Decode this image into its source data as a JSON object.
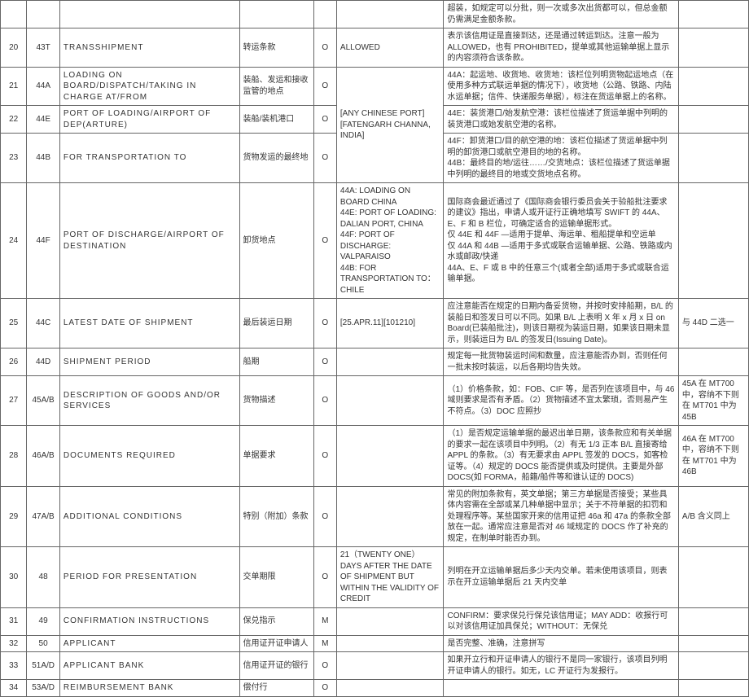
{
  "rows": [
    {
      "idx": "",
      "code": "",
      "field": "",
      "cn": "",
      "req": "",
      "val": "",
      "desc": "超装，如规定可以分批，则一次或多次出货都可以，但总金额仍需满足金额条款。",
      "note": ""
    },
    {
      "idx": "20",
      "code": "43T",
      "field": "TRANSSHIPMENT",
      "cn": "转运条款",
      "req": "O",
      "val": "ALLOWED",
      "desc": "表示该信用证是直接到达，还是通过转运到达。注意一般为 ALLOWED，也有 PROHIBITED，提单或其他运输单据上显示的内容须符合该条款。",
      "note": ""
    },
    {
      "idx": "21",
      "code": "44A",
      "field": "LOADING ON BOARD/DISPATCH/TAKING IN CHARGE AT/FROM",
      "cn": "装船、发运和接收监管的地点",
      "req": "O",
      "val": "[ANY CHINESE PORT][FATENGARH CHANNA, INDIA]",
      "desc_key": "shared44.a",
      "note": ""
    },
    {
      "idx": "22",
      "code": "44E",
      "field": "PORT OF LOADING/AIRPORT OF DEP(ARTURE)",
      "cn": "装船/装机港口",
      "req": "O",
      "val_key": "shared44.val",
      "desc_key": "shared44.e",
      "note": ""
    },
    {
      "idx": "23",
      "code": "44B",
      "field": "FOR TRANSPORTATION TO",
      "cn": "货物发运的最终地",
      "req": "O",
      "val_key": "shared44.val",
      "desc_key": "shared44.b",
      "note": ""
    },
    {
      "idx": "24",
      "code": "44F",
      "field": "PORT OF DISCHARGE/AIRPORT OF DESTINATION",
      "cn": "卸货地点",
      "req": "O",
      "val_key": "shared44.val",
      "desc_key": "shared44.f",
      "note": ""
    },
    {
      "idx": "25",
      "code": "44C",
      "field": "LATEST DATE OF SHIPMENT",
      "cn": "最后装运日期",
      "req": "O",
      "val": "[25.APR.11][101210]",
      "desc": "应注意能否在规定的日期内备妥货物，并按时安排船期，B/L 的装船日和签发日可以不同。如果 B/L 上表明 X 年 x 月 x 日 on Board(已装船批注)，则该日期视为装运日期，如果该日期未显示，则装运日为 B/L 的签发日(Issuing Date)。",
      "note": "与 44D 二选一"
    },
    {
      "idx": "26",
      "code": "44D",
      "field": "SHIPMENT PERIOD",
      "cn": "船期",
      "req": "O",
      "val": "",
      "desc": "规定每一批货物装运时间和数量，应注意能否办到，否则任何一批未按时装运，以后各期均告失效。",
      "note": ""
    },
    {
      "idx": "27",
      "code": "45A/B",
      "field": "DESCRIPTION OF GOODS AND/OR SERVICES",
      "cn": "货物描述",
      "req": "O",
      "val": "",
      "desc": "（1）价格条款，如：FOB、CIF 等，是否列在该项目中，与 46 域则要求是否有矛盾。（2）货物描述不宜太繁琐，否则易产生不符点。（3）DOC 应照抄",
      "note": "45A 在 MT700 中，容纳不下则在 MT701 中为 45B"
    },
    {
      "idx": "28",
      "code": "46A/B",
      "field": "DOCUMENTS REQUIRED",
      "cn": "单据要求",
      "req": "O",
      "val": "",
      "desc": "（1）是否规定运输单据的最迟出单日期，该条款应和有关单据的要求一起在该项目中列明。（2）有无 1/3 正本 B/L 直接寄给 APPL 的条款。（3）有无要求由 APPL 签发的 DOCS，如客检证等。（4）规定的 DOCS 能否提供或及时提供。主要是外部 DOCS(如 FORMA，船籍/船件等和谁认证的 DOCS)",
      "note": "46A 在 MT700 中，容纳不下则在 MT701 中为 46B"
    },
    {
      "idx": "29",
      "code": "47A/B",
      "field": "ADDITIONAL CONDITIONS",
      "cn": "特别（附加）条款",
      "req": "O",
      "val": "",
      "desc": "常见的附加条款有，英文单据；第三方单据是否接受；某些具体内容需在全部或某几种单据中显示；关于不符单据的扣罚和处理程序等。某些国家开来的信用证把 46a 和 47a 的条款全部放在一起。通常应注意是否对 46 域规定的 DOCS 作了补充的规定，在制单时能否办到。",
      "note": "A/B 含义同上"
    },
    {
      "idx": "30",
      "code": "48",
      "field": "PERIOD FOR PRESENTATION",
      "cn": "交单期限",
      "req": "O",
      "val": "21（TWENTY ONE）DAYS AFTER THE DATE OF SHIPMENT BUT WITHIN THE VALIDITY OF CREDIT",
      "desc": "列明在开立运输单据后多少天内交单。若未使用该项目，则表示在开立运输单据后 21 天内交单",
      "note": ""
    },
    {
      "idx": "31",
      "code": "49",
      "field": "CONFIRMATION INSTRUCTIONS",
      "cn": "保兑指示",
      "req": "M",
      "val": "",
      "desc": "CONFIRM：要求保兑行保兑该信用证；MAY ADD：收报行可以对该信用证加具保兑；WITHOUT：无保兑",
      "note": ""
    },
    {
      "idx": "32",
      "code": "50",
      "field": "APPLICANT",
      "cn": "信用证开证申请人",
      "req": "M",
      "val": "",
      "desc": "是否完整、准确，注意拼写",
      "note": ""
    },
    {
      "idx": "33",
      "code": "51A/D",
      "field": "APPLICANT BANK",
      "cn": "信用证开证的银行",
      "req": "O",
      "val": "",
      "desc": "如果开立行和开证申请人的银行不是同一家银行，该项目列明开证申请人的银行。如无，LC 开证行为发报行。",
      "note": ""
    },
    {
      "idx": "34",
      "code": "53A/D",
      "field": "REIMBURSEMENT BANK",
      "cn": "偿付行",
      "req": "O",
      "val": "",
      "desc": "",
      "note": ""
    }
  ],
  "shared44": {
    "val": "44A: LOADING ON BOARD CHINA\n44E: PORT OF LOADING: DALIAN PORT, CHINA\n44F: PORT OF DISCHARGE: VALPARAISO\n44B: FOR TRANSPORTATION TO：CHILE",
    "a": "44A：起运地、收货地、收货地：该栏位列明货物起运地点（在使用多种方式联运单据的情况下），收货地（公路、铁路、内陆水运单据；信件、快递服务单据），标注在货运单据上的名称。",
    "e": "44E：装货港口/始发航空港：该栏位描述了货运单据中列明的装货港口或始发航空港的名称。",
    "b": "44F：卸货港口/目的航空港的地：该栏位描述了货运单据中列明的卸货港口或航空港目的地的名称。\n44B：最终目的地/运往……/交货地点：该栏位描述了货运单据中列明的最终目的地或交货地点名称。",
    "f": "国际商会最近通过了《国际商会银行委员会关于验船批注要求的建议》指出，申请人或开证行正确地填写 SWIFT 的 44A、E、F 和 B 栏位，可确定适合的运输单据形式。\n仅 44E 和 44F —适用于提单、海运单、租船提单和空运单\n仅 44A 和 44B —适用于多式或联合运输单据、公路、铁路或内水或邮政/快递\n44A、E、F 或 B 中的任意三个(或者全部)适用于多式或联合运输单据。"
  }
}
